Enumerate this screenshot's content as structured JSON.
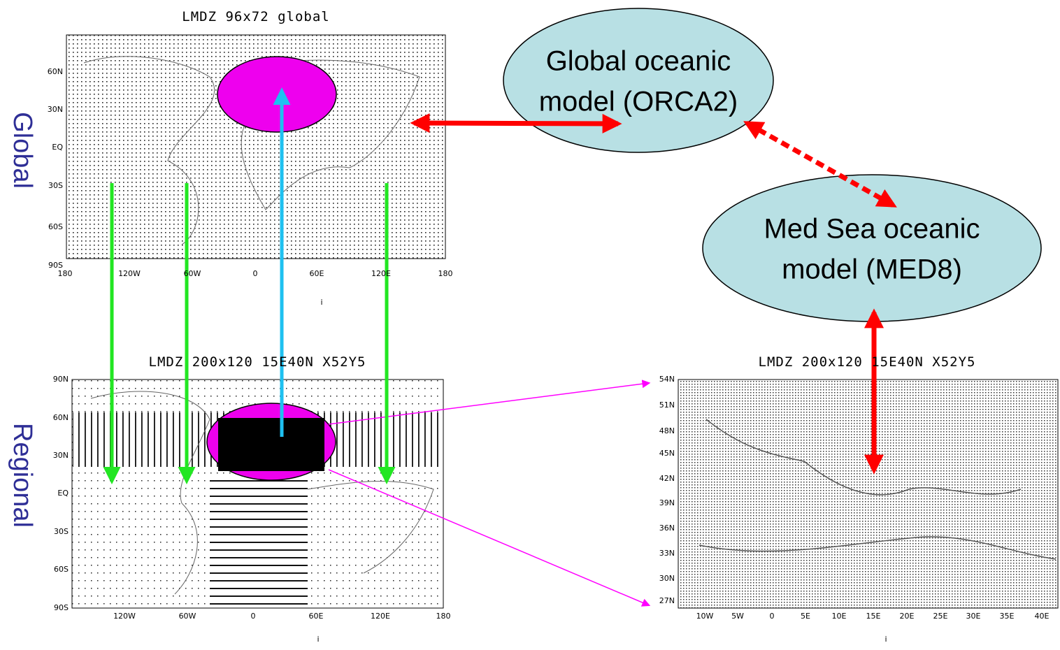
{
  "side_labels": {
    "global": "Global",
    "regional": "Regional"
  },
  "maps": [
    {
      "title": "LMDZ 96x72 global",
      "lat_labels": [
        "60N",
        "30N",
        "EQ",
        "30S",
        "60S",
        "90S"
      ],
      "lon_labels": [
        "180",
        "120W",
        "60W",
        "0",
        "60E",
        "120E",
        "180"
      ],
      "x_label": "i"
    },
    {
      "title": "LMDZ 200x120 15E40N X52Y5",
      "lat_labels": [
        "90N",
        "60N",
        "30N",
        "EQ",
        "30S",
        "60S",
        "90S"
      ],
      "lon_labels": [
        "120W",
        "60W",
        "0",
        "60E",
        "120E",
        "180"
      ],
      "x_label": "i"
    },
    {
      "title": "LMDZ 200x120 15E40N X52Y5",
      "lat_labels": [
        "54N",
        "51N",
        "48N",
        "45N",
        "42N",
        "39N",
        "36N",
        "33N",
        "30N",
        "27N"
      ],
      "lon_labels": [
        "10W",
        "5W",
        "0",
        "5E",
        "10E",
        "15E",
        "20E",
        "25E",
        "30E",
        "35E",
        "40E"
      ],
      "x_label": "i"
    }
  ],
  "nodes": [
    {
      "label": [
        "Global oceanic",
        "model (ORCA2)"
      ]
    },
    {
      "label": [
        "Med Sea oceanic",
        "model (MED8)"
      ]
    }
  ]
}
